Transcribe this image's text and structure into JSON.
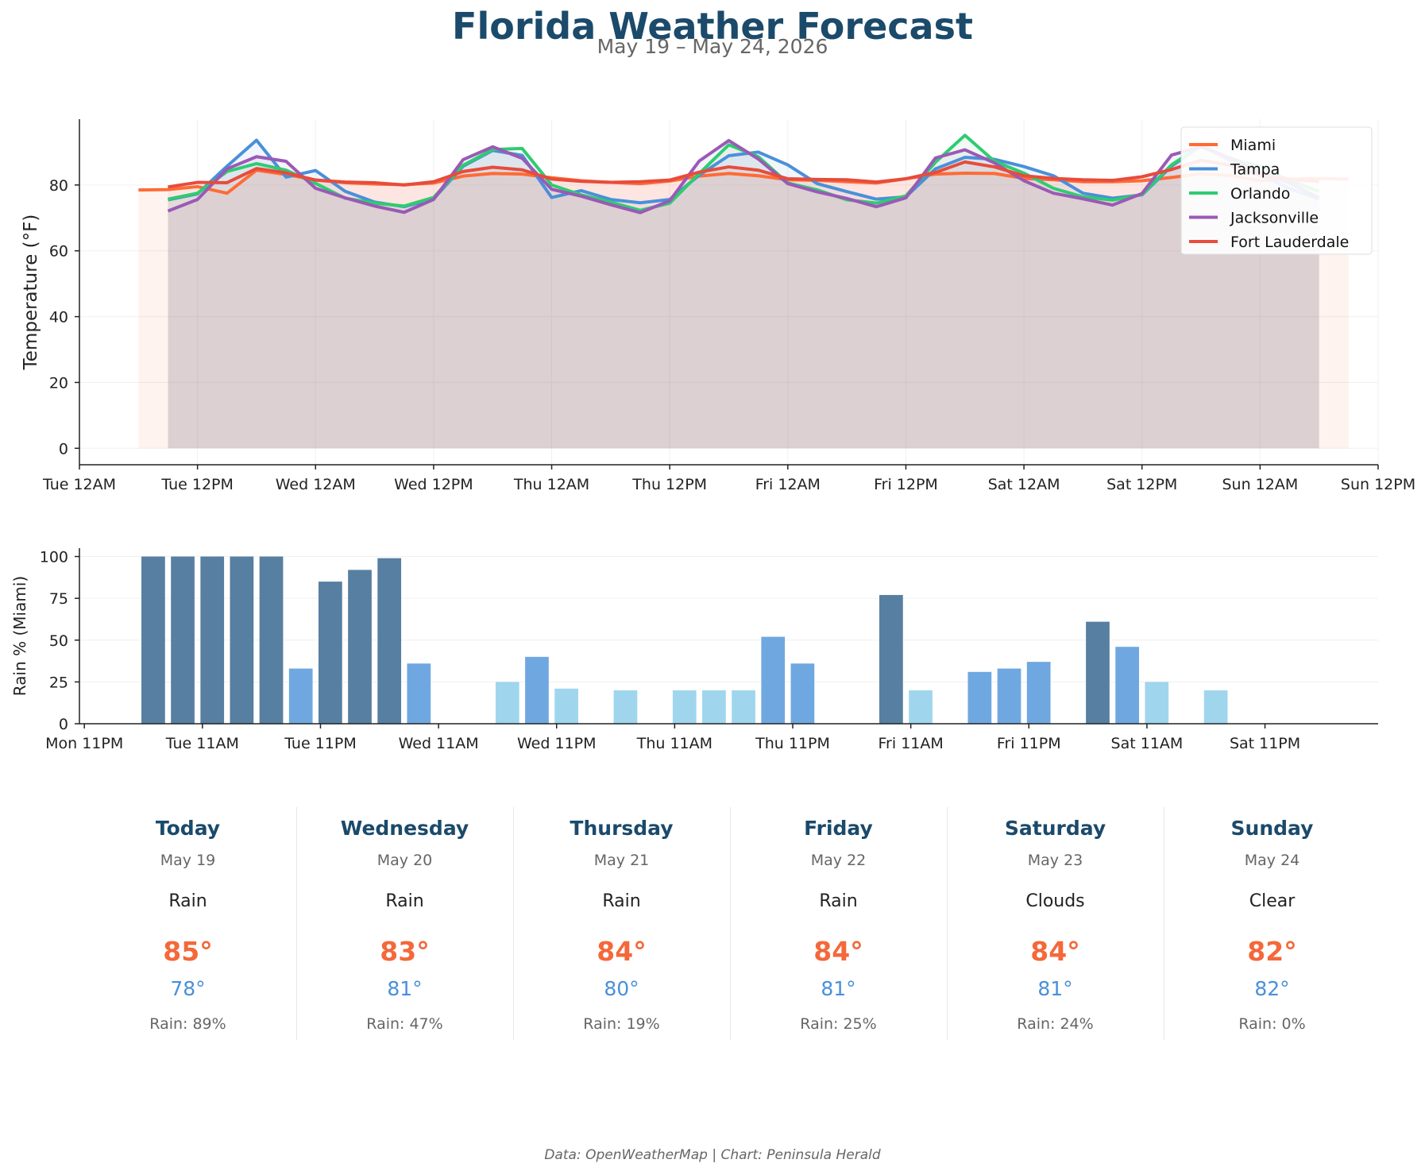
{
  "header": {
    "title": "Florida Weather Forecast",
    "subtitle": "May 19 – May 24, 2026"
  },
  "colors": {
    "title": "#1b4a6b",
    "Miami": "#ff6b35",
    "Tampa": "#4a90d9",
    "Orlando": "#2ecc71",
    "Jacksonville": "#9b59b6",
    "Fort Lauderdale": "#e74c3c",
    "rain_high": "#577fa1",
    "rain_mid": "#6fa8e0",
    "rain_low": "#9fd6ee",
    "hi_temp": "#f4683a",
    "lo_temp": "#4a90d9"
  },
  "chart_data": [
    {
      "type": "line",
      "ylabel": "Temperature (°F)",
      "xlabel": "",
      "x_unit": "hours after Tue 12AM (May 19)",
      "ylim": [
        -5,
        100
      ],
      "xlim": [
        0,
        132
      ],
      "yticks": [
        0,
        20,
        40,
        60,
        80
      ],
      "xticks": [
        {
          "h": 0,
          "label": "Tue 12AM"
        },
        {
          "h": 12,
          "label": "Tue 12PM"
        },
        {
          "h": 24,
          "label": "Wed 12AM"
        },
        {
          "h": 36,
          "label": "Wed 12PM"
        },
        {
          "h": 48,
          "label": "Thu 12AM"
        },
        {
          "h": 60,
          "label": "Thu 12PM"
        },
        {
          "h": 72,
          "label": "Fri 12AM"
        },
        {
          "h": 84,
          "label": "Fri 12PM"
        },
        {
          "h": 96,
          "label": "Sat 12AM"
        },
        {
          "h": 108,
          "label": "Sat 12PM"
        },
        {
          "h": 120,
          "label": "Sun 12AM"
        },
        {
          "h": 132,
          "label": "Sun 12PM"
        }
      ],
      "grid": true,
      "legend_position": "top-right",
      "area_fill": true,
      "series": [
        {
          "name": "Miami",
          "x_start": 6,
          "step": 3,
          "values": [
            78.5,
            78.6,
            79.5,
            77.5,
            84.5,
            83.2,
            81.5,
            80.7,
            80.3,
            80.1,
            80.6,
            82.7,
            83.5,
            83.3,
            82.2,
            81.3,
            80.8,
            80.4,
            81.2,
            82.7,
            83.5,
            82.8,
            81.6,
            81.4,
            81.0,
            80.6,
            81.9,
            83.3,
            83.6,
            83.5,
            82.0,
            81.6,
            81.0,
            81.0,
            81.3,
            82.3,
            83.4,
            82.9,
            81.3,
            81.8,
            82.0,
            81.8
          ]
        },
        {
          "name": "Tampa",
          "x_start": 9,
          "step": 3,
          "values": [
            75.5,
            77.3,
            85.7,
            93.6,
            82.4,
            84.4,
            78.1,
            74.8,
            73.4,
            75.8,
            85.7,
            90.5,
            89.0,
            76.2,
            78.3,
            75.6,
            74.6,
            75.6,
            83.0,
            88.9,
            90.0,
            86.1,
            80.4,
            78.0,
            75.7,
            76.4,
            84.9,
            88.4,
            87.8,
            85.6,
            82.8,
            77.5,
            76.0,
            77.0,
            85.7,
            92.0,
            87.4,
            83.3,
            78.9,
            75.8
          ]
        },
        {
          "name": "Orlando",
          "x_start": 9,
          "step": 3,
          "values": [
            75.7,
            77.5,
            84.1,
            86.5,
            84.5,
            80.5,
            76.0,
            74.5,
            73.6,
            76.2,
            86.0,
            90.8,
            91.1,
            80.0,
            77.0,
            74.8,
            72.3,
            74.5,
            83.5,
            92.2,
            88.6,
            80.6,
            78.5,
            75.5,
            74.5,
            76.7,
            86.9,
            95.1,
            87.2,
            83.6,
            79.0,
            76.4,
            75.4,
            77.1,
            86.1,
            92.1,
            88.0,
            85.6,
            81.4,
            78.0
          ]
        },
        {
          "name": "Jacksonville",
          "x_start": 9,
          "step": 3,
          "values": [
            72.1,
            75.6,
            84.9,
            88.6,
            87.2,
            79.0,
            76.1,
            73.6,
            71.7,
            75.6,
            87.7,
            91.6,
            88.1,
            78.7,
            76.6,
            74.0,
            71.6,
            75.2,
            87.3,
            93.5,
            87.9,
            80.4,
            77.9,
            75.9,
            73.4,
            76.1,
            88.2,
            90.7,
            86.7,
            81.3,
            77.5,
            75.8,
            73.9,
            77.4,
            89.1,
            91.6,
            88.2,
            84.0,
            80.6,
            76.1
          ]
        },
        {
          "name": "Fort Lauderdale",
          "x_start": 9,
          "step": 3,
          "values": [
            79.4,
            80.8,
            80.7,
            85.0,
            83.7,
            81.5,
            80.9,
            80.7,
            80.0,
            81.0,
            84.1,
            85.4,
            84.6,
            81.8,
            81.1,
            80.8,
            81.0,
            81.5,
            83.9,
            85.5,
            84.5,
            81.9,
            81.7,
            81.6,
            80.9,
            81.9,
            83.8,
            87.0,
            85.5,
            82.8,
            82.0,
            81.6,
            81.4,
            82.5,
            84.7,
            87.5,
            86.0,
            82.9,
            81.7,
            81.1
          ]
        }
      ]
    },
    {
      "type": "bar",
      "ylabel": "Rain % (Miami)",
      "xlabel": "",
      "x_unit": "hours after Mon 11PM (May 18)",
      "ylim": [
        0,
        105
      ],
      "xlim": [
        -0.5,
        131.5
      ],
      "yticks": [
        0,
        25,
        50,
        75,
        100
      ],
      "xticks": [
        {
          "h": 0,
          "label": "Mon 11PM"
        },
        {
          "h": 12,
          "label": "Tue 11AM"
        },
        {
          "h": 24,
          "label": "Tue 11PM"
        },
        {
          "h": 36,
          "label": "Wed 11AM"
        },
        {
          "h": 48,
          "label": "Wed 11PM"
        },
        {
          "h": 60,
          "label": "Thu 11AM"
        },
        {
          "h": 72,
          "label": "Thu 11PM"
        },
        {
          "h": 84,
          "label": "Fri 11AM"
        },
        {
          "h": 96,
          "label": "Fri 11PM"
        },
        {
          "h": 108,
          "label": "Sat 11AM"
        },
        {
          "h": 120,
          "label": "Sat 11PM"
        }
      ],
      "grid": true,
      "x_start": 7,
      "step": 3,
      "values": [
        100,
        100,
        100,
        100,
        100,
        33,
        85,
        92,
        99,
        36,
        0,
        0,
        25,
        40,
        21,
        0,
        20,
        0,
        20,
        20,
        20,
        52,
        36,
        0,
        0,
        77,
        20,
        0,
        31,
        33,
        37,
        0,
        61,
        46,
        25,
        0,
        20,
        0,
        0,
        0,
        0,
        0
      ]
    }
  ],
  "forecast": [
    {
      "day": "Today",
      "date": "May 19",
      "condition": "Rain",
      "high": "85°",
      "low": "78°",
      "rain": "Rain: 89%"
    },
    {
      "day": "Wednesday",
      "date": "May 20",
      "condition": "Rain",
      "high": "83°",
      "low": "81°",
      "rain": "Rain: 47%"
    },
    {
      "day": "Thursday",
      "date": "May 21",
      "condition": "Rain",
      "high": "84°",
      "low": "80°",
      "rain": "Rain: 19%"
    },
    {
      "day": "Friday",
      "date": "May 22",
      "condition": "Rain",
      "high": "84°",
      "low": "81°",
      "rain": "Rain: 25%"
    },
    {
      "day": "Saturday",
      "date": "May 23",
      "condition": "Clouds",
      "high": "84°",
      "low": "81°",
      "rain": "Rain: 24%"
    },
    {
      "day": "Sunday",
      "date": "May 24",
      "condition": "Clear",
      "high": "82°",
      "low": "82°",
      "rain": "Rain: 0%"
    }
  ],
  "footer": "Data: OpenWeatherMap | Chart: Peninsula Herald"
}
